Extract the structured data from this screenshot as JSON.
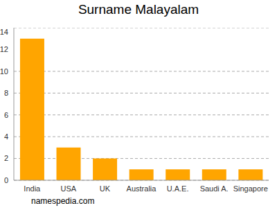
{
  "chart_data": {
    "type": "bar",
    "title": "Surname Malayalam",
    "categories": [
      "India",
      "USA",
      "UK",
      "Australia",
      "U.A.E.",
      "Saudi A.",
      "Singapore"
    ],
    "values": [
      13,
      3,
      2,
      1,
      1,
      1,
      1
    ],
    "color": "#ffa500",
    "ylim": [
      0,
      14
    ],
    "yticks": [
      0,
      2,
      4,
      6,
      8,
      10,
      12,
      14
    ],
    "grid": true,
    "annotations": [
      "namespedia.com"
    ]
  }
}
